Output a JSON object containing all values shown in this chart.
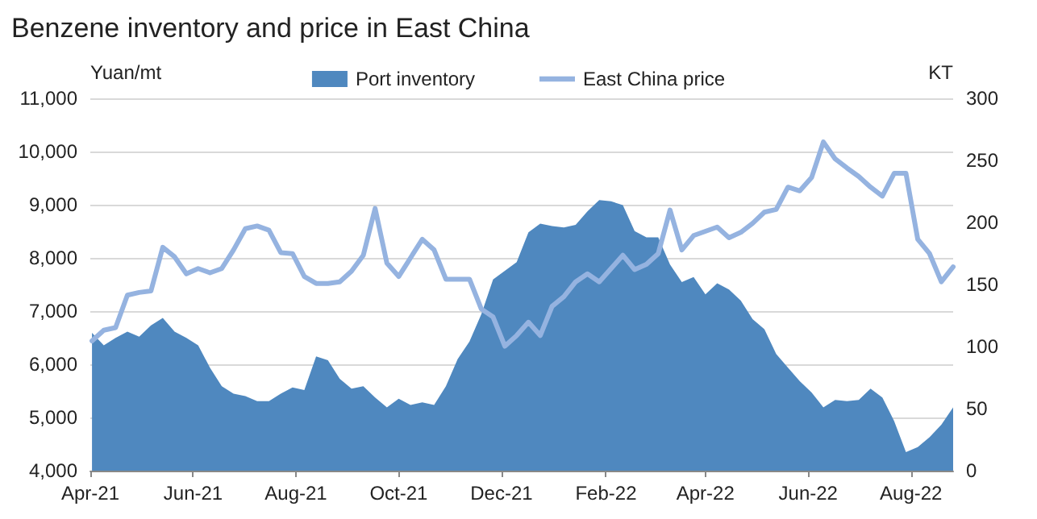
{
  "chart_data": {
    "type": "line",
    "title": "Benzene inventory and price in East China",
    "ylabel": "Yuan/mt",
    "y2label": "KT",
    "x": [
      "2021-04-02",
      "2021-04-09",
      "2021-04-16",
      "2021-04-23",
      "2021-04-30",
      "2021-05-07",
      "2021-05-14",
      "2021-05-21",
      "2021-05-28",
      "2021-06-04",
      "2021-06-11",
      "2021-06-18",
      "2021-06-25",
      "2021-07-02",
      "2021-07-09",
      "2021-07-16",
      "2021-07-23",
      "2021-07-30",
      "2021-08-06",
      "2021-08-13",
      "2021-08-20",
      "2021-08-27",
      "2021-09-03",
      "2021-09-10",
      "2021-09-17",
      "2021-09-24",
      "2021-10-01",
      "2021-10-08",
      "2021-10-15",
      "2021-10-22",
      "2021-10-29",
      "2021-11-05",
      "2021-11-12",
      "2021-11-19",
      "2021-11-26",
      "2021-12-03",
      "2021-12-10",
      "2021-12-17",
      "2021-12-24",
      "2021-12-31",
      "2022-01-07",
      "2022-01-14",
      "2022-01-21",
      "2022-01-28",
      "2022-02-04",
      "2022-02-11",
      "2022-02-18",
      "2022-02-25",
      "2022-03-04",
      "2022-03-11",
      "2022-03-18",
      "2022-03-25",
      "2022-04-01",
      "2022-04-08",
      "2022-04-15",
      "2022-04-22",
      "2022-04-29",
      "2022-05-06",
      "2022-05-13",
      "2022-05-20",
      "2022-05-27",
      "2022-06-03",
      "2022-06-10",
      "2022-06-17",
      "2022-06-24",
      "2022-07-01",
      "2022-07-08",
      "2022-07-15",
      "2022-07-22",
      "2022-07-29",
      "2022-08-05",
      "2022-08-12",
      "2022-08-19",
      "2022-08-26"
    ],
    "series": [
      {
        "name": "Port inventory",
        "type": "area",
        "axis": "y2",
        "color": "#4f88bf",
        "values": [
          111,
          101,
          107,
          112,
          108,
          117,
          123,
          112,
          107,
          101,
          83,
          68,
          62,
          60,
          56,
          56,
          62,
          67,
          65,
          92,
          89,
          74,
          66,
          68,
          59,
          51,
          58,
          53,
          55,
          53,
          68,
          90,
          104,
          126,
          154,
          161,
          168,
          192,
          199,
          197,
          196,
          198,
          209,
          218,
          217,
          214,
          193,
          188,
          188,
          166,
          152,
          156,
          142,
          151,
          146,
          137,
          122,
          114,
          94,
          83,
          72,
          63,
          51,
          57,
          56,
          57,
          66,
          59,
          40,
          15,
          19,
          27,
          37,
          51
        ]
      },
      {
        "name": "East China price",
        "color": "#95b3e0",
        "values": [
          6440,
          6640,
          6690,
          7300,
          7350,
          7380,
          8200,
          8020,
          7700,
          7800,
          7720,
          7800,
          8150,
          8550,
          8600,
          8520,
          8100,
          8080,
          7650,
          7520,
          7520,
          7550,
          7750,
          8050,
          8930,
          7900,
          7650,
          8000,
          8350,
          8150,
          7600,
          7600,
          7600,
          7040,
          6890,
          6340,
          6540,
          6790,
          6540,
          7090,
          7270,
          7550,
          7700,
          7550,
          7800,
          8050,
          7780,
          7880,
          8080,
          8900,
          8150,
          8420,
          8500,
          8580,
          8380,
          8480,
          8650,
          8860,
          8910,
          9330,
          9260,
          9510,
          10180,
          9860,
          9690,
          9530,
          9330,
          9160,
          9590,
          9590,
          8350,
          8080,
          7550,
          7830
        ]
      }
    ],
    "xlim": [
      "2021-04-01",
      "2022-08-26"
    ],
    "xticks": [
      {
        "value": "2021-04-01",
        "label": "Apr-21"
      },
      {
        "value": "2021-06-01",
        "label": "Jun-21"
      },
      {
        "value": "2021-08-01",
        "label": "Aug-21"
      },
      {
        "value": "2021-10-01",
        "label": "Oct-21"
      },
      {
        "value": "2021-12-01",
        "label": "Dec-21"
      },
      {
        "value": "2022-02-01",
        "label": "Feb-22"
      },
      {
        "value": "2022-04-01",
        "label": "Apr-22"
      },
      {
        "value": "2022-06-01",
        "label": "Jun-22"
      },
      {
        "value": "2022-08-01",
        "label": "Aug-22"
      }
    ],
    "ylim": [
      4000,
      11000
    ],
    "yticks": [
      {
        "value": 4000,
        "label": "4,000"
      },
      {
        "value": 5000,
        "label": "5,000"
      },
      {
        "value": 6000,
        "label": "6,000"
      },
      {
        "value": 7000,
        "label": "7,000"
      },
      {
        "value": 8000,
        "label": "8,000"
      },
      {
        "value": 9000,
        "label": "9,000"
      },
      {
        "value": 10000,
        "label": "10,000"
      },
      {
        "value": 11000,
        "label": "11,000"
      }
    ],
    "y2lim": [
      0,
      300
    ],
    "y2ticks": [
      0,
      50,
      100,
      150,
      200,
      250,
      300
    ],
    "grid": "y",
    "legend": "top",
    "marker": "none"
  }
}
